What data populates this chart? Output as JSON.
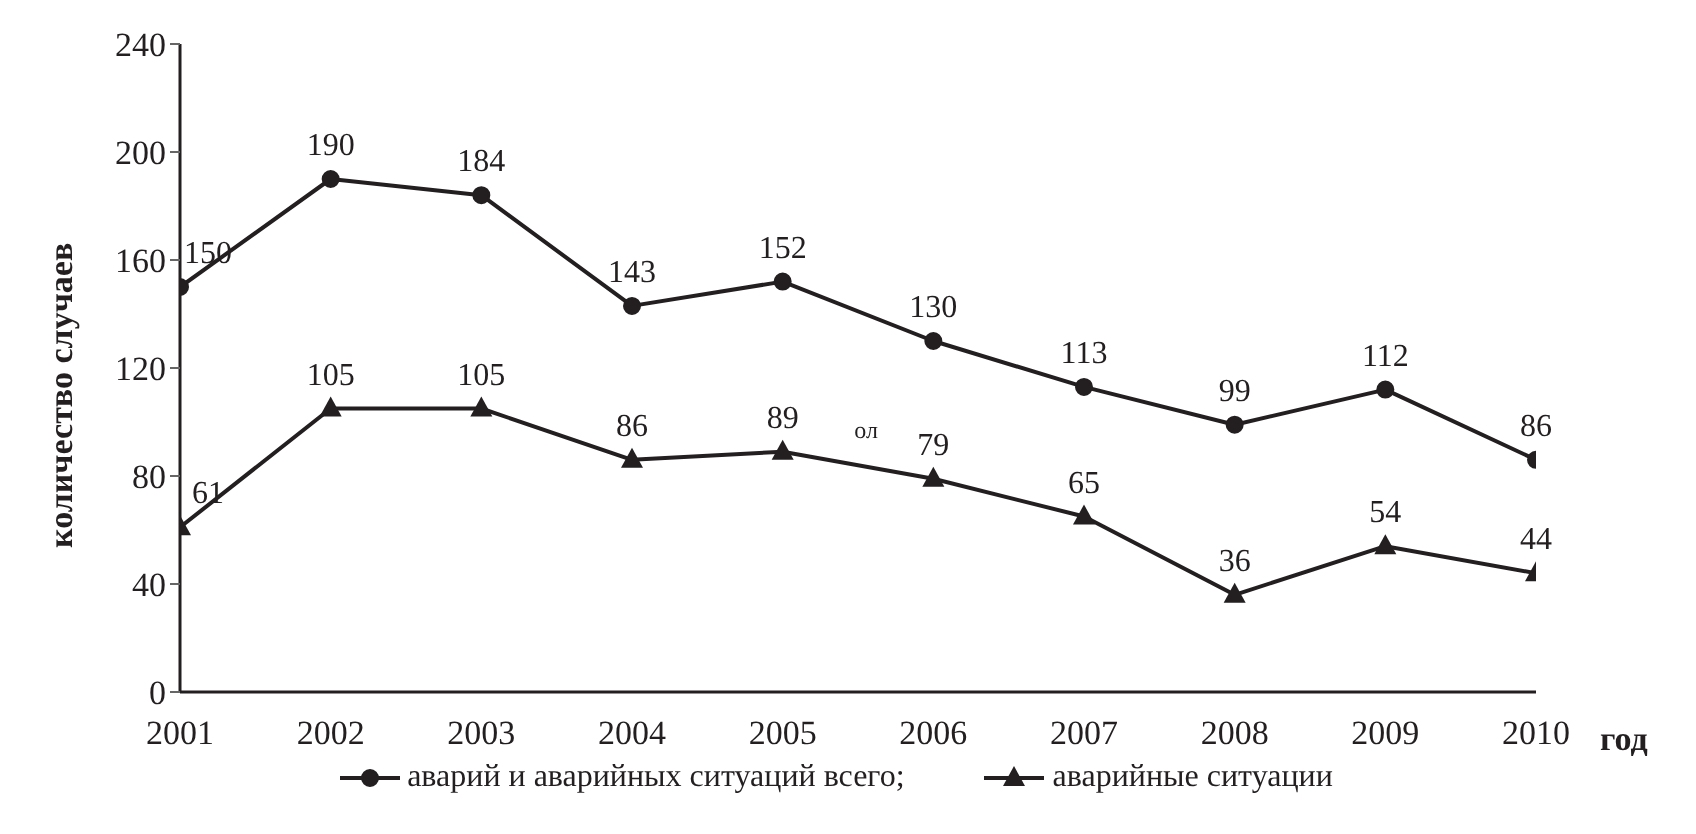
{
  "chart_data": {
    "type": "line",
    "ylabel": "количество случаев",
    "xlabel": "год",
    "x": [
      2001,
      2002,
      2003,
      2004,
      2005,
      2006,
      2007,
      2008,
      2009,
      2010
    ],
    "xlim": [
      2001,
      2010
    ],
    "xticks": [
      2001,
      2002,
      2003,
      2004,
      2005,
      2006,
      2007,
      2008,
      2009,
      2010
    ],
    "ylim": [
      0,
      240
    ],
    "yticks": [
      0,
      40,
      80,
      120,
      160,
      200,
      240
    ],
    "series": [
      {
        "name": "аварий и аварийных ситуаций всего;",
        "color": "#231f20",
        "marker": "circle",
        "values": [
          150,
          190,
          184,
          143,
          152,
          130,
          113,
          99,
          112,
          86
        ]
      },
      {
        "name": "аварийные ситуации",
        "color": "#231f20",
        "marker": "triangle",
        "values": [
          61,
          105,
          105,
          86,
          89,
          79,
          65,
          36,
          54,
          44
        ]
      }
    ],
    "data_labels": true,
    "grid": false,
    "legend": "bottom",
    "line_style": "solid",
    "annotations": [
      "ол"
    ]
  }
}
